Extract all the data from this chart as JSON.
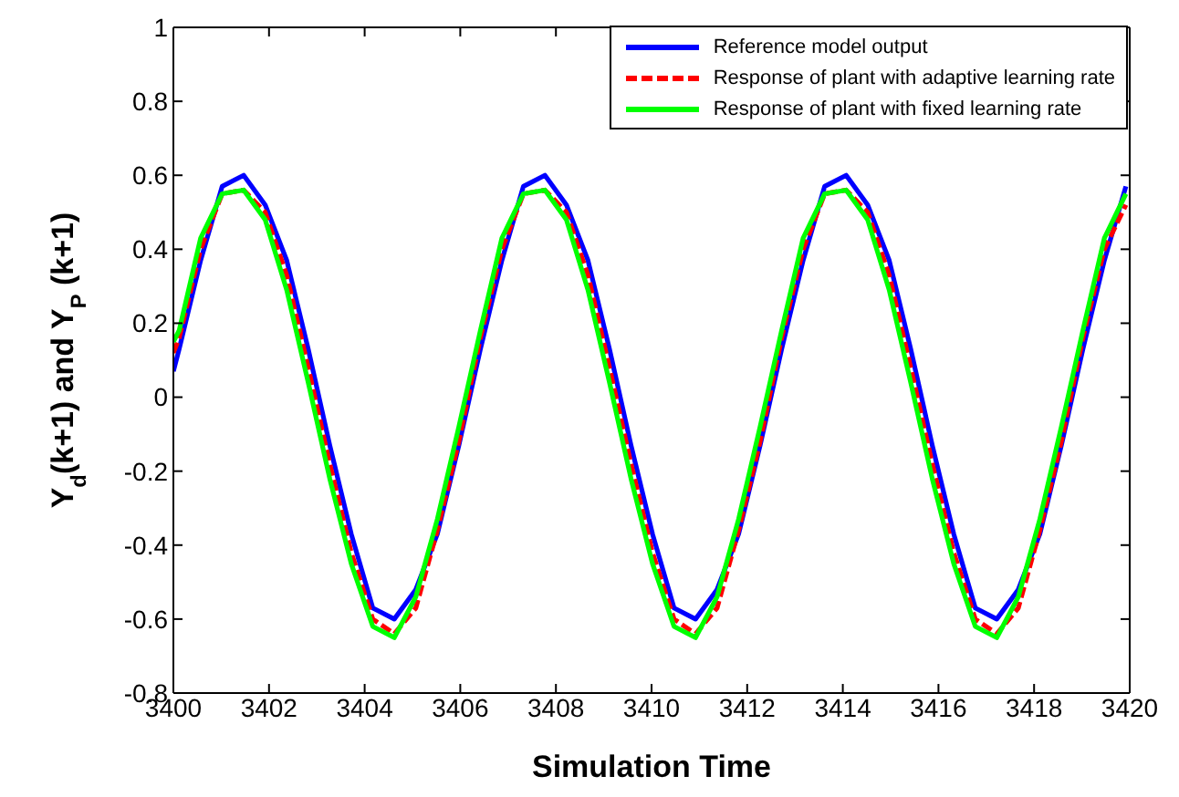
{
  "chart_data": {
    "type": "line",
    "xlabel": "Simulation Time",
    "ylabel": "Y$_{d}$(k+1) and Y$_{P}$ (k+1)",
    "x": [
      3400,
      3400.12,
      3400.57,
      3401.02,
      3401.47,
      3401.92,
      3402.37,
      3402.82,
      3403.27,
      3403.72,
      3404.17,
      3404.62,
      3405.07,
      3405.52,
      3405.97,
      3406.42,
      3406.87,
      3407.32,
      3407.77,
      3408.22,
      3408.67,
      3409.12,
      3409.57,
      3410.02,
      3410.47,
      3410.92,
      3411.37,
      3411.82,
      3412.27,
      3412.72,
      3413.17,
      3413.62,
      3414.07,
      3414.52,
      3414.97,
      3415.42,
      3415.87,
      3416.32,
      3416.77,
      3417.22,
      3417.67,
      3418.12,
      3418.57,
      3419.02,
      3419.47,
      3419.92
    ],
    "series": [
      {
        "name": "Reference model output",
        "color": "#0000ff",
        "line_style": "solid",
        "values": [
          0.07,
          0.13,
          0.37,
          0.57,
          0.6,
          0.52,
          0.37,
          0.13,
          -0.13,
          -0.37,
          -0.57,
          -0.6,
          -0.52,
          -0.37,
          -0.13,
          0.13,
          0.37,
          0.57,
          0.6,
          0.52,
          0.37,
          0.13,
          -0.13,
          -0.37,
          -0.57,
          -0.6,
          -0.52,
          -0.37,
          -0.13,
          0.13,
          0.37,
          0.57,
          0.6,
          0.52,
          0.37,
          0.13,
          -0.13,
          -0.37,
          -0.57,
          -0.6,
          -0.52,
          -0.37,
          -0.13,
          0.13,
          0.37,
          0.57
        ]
      },
      {
        "name": "Response of plant with adaptive learning rate",
        "color": "#ff0000",
        "line_style": "dashed",
        "values": [
          0.12,
          0.16,
          0.4,
          0.55,
          0.56,
          0.5,
          0.33,
          0.08,
          -0.18,
          -0.42,
          -0.6,
          -0.64,
          -0.57,
          -0.36,
          -0.12,
          0.16,
          0.4,
          0.55,
          0.56,
          0.5,
          0.33,
          0.08,
          -0.18,
          -0.42,
          -0.6,
          -0.64,
          -0.57,
          -0.36,
          -0.12,
          0.16,
          0.4,
          0.55,
          0.56,
          0.5,
          0.33,
          0.08,
          -0.18,
          -0.42,
          -0.6,
          -0.64,
          -0.57,
          -0.36,
          -0.12,
          0.16,
          0.4,
          0.52
        ]
      },
      {
        "name": "Response of plant with fixed learning rate",
        "color": "#00ff00",
        "line_style": "solid",
        "values": [
          0.15,
          0.18,
          0.43,
          0.55,
          0.56,
          0.48,
          0.29,
          0.04,
          -0.22,
          -0.45,
          -0.62,
          -0.65,
          -0.54,
          -0.33,
          -0.08,
          0.18,
          0.43,
          0.55,
          0.56,
          0.48,
          0.29,
          0.04,
          -0.22,
          -0.45,
          -0.62,
          -0.65,
          -0.54,
          -0.33,
          -0.08,
          0.18,
          0.43,
          0.55,
          0.56,
          0.48,
          0.29,
          0.04,
          -0.22,
          -0.45,
          -0.62,
          -0.65,
          -0.54,
          -0.33,
          -0.08,
          0.18,
          0.43,
          0.55
        ]
      }
    ],
    "xlim": [
      3400,
      3420
    ],
    "xticks": [
      3400,
      3402,
      3404,
      3406,
      3408,
      3410,
      3412,
      3414,
      3416,
      3418,
      3420
    ],
    "ylim": [
      -0.8,
      1
    ],
    "yticks": [
      -0.8,
      -0.6,
      -0.4,
      -0.2,
      0,
      0.2,
      0.4,
      0.6,
      0.8,
      1
    ],
    "grid": false,
    "legend": "top right",
    "marker": "none"
  }
}
